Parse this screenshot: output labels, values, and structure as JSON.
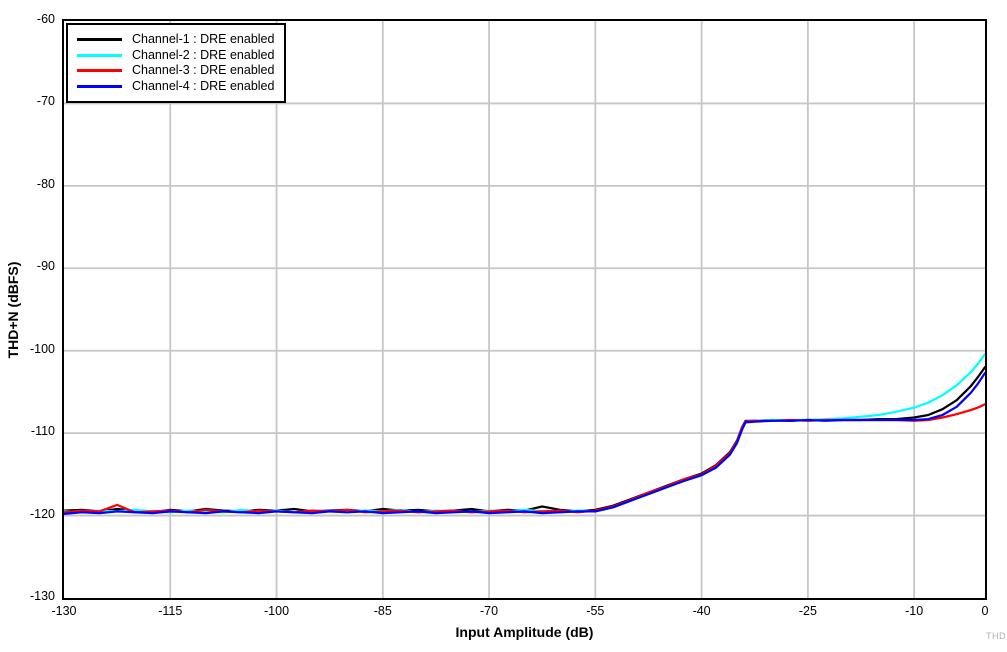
{
  "watermark": "THD",
  "colors": {
    "grid": "#c6c6c6",
    "axis": "#000000",
    "background": "#ffffff"
  },
  "chart_data": {
    "type": "line",
    "title": "",
    "xlabel": "Input Amplitude (dB)",
    "ylabel": "THD+N (dBFS)",
    "xlim": [
      -130,
      0
    ],
    "ylim": [
      -130,
      -60
    ],
    "x_ticks": [
      -130,
      -115,
      -100,
      -85,
      -70,
      -55,
      -40,
      -25,
      -10,
      0
    ],
    "y_ticks": [
      -60,
      -70,
      -80,
      -90,
      -100,
      -110,
      -120,
      -130
    ],
    "grid": true,
    "legend_position": "top-left",
    "series": [
      {
        "name": "Channel-1 : DRE enabled",
        "color": "#000000",
        "points": [
          [
            -130,
            -119.4
          ],
          [
            -127.5,
            -119.3
          ],
          [
            -125,
            -119.5
          ],
          [
            -122.5,
            -119.2
          ],
          [
            -120,
            -119.4
          ],
          [
            -117.5,
            -119.6
          ],
          [
            -115,
            -119.3
          ],
          [
            -112.5,
            -119.5
          ],
          [
            -110,
            -119.2
          ],
          [
            -107.5,
            -119.4
          ],
          [
            -105,
            -119.5
          ],
          [
            -102.5,
            -119.3
          ],
          [
            -100,
            -119.4
          ],
          [
            -97.5,
            -119.2
          ],
          [
            -95,
            -119.5
          ],
          [
            -92.5,
            -119.4
          ],
          [
            -90,
            -119.3
          ],
          [
            -87.5,
            -119.5
          ],
          [
            -85,
            -119.2
          ],
          [
            -82.5,
            -119.4
          ],
          [
            -80,
            -119.3
          ],
          [
            -77.5,
            -119.5
          ],
          [
            -75,
            -119.4
          ],
          [
            -72.5,
            -119.2
          ],
          [
            -70,
            -119.5
          ],
          [
            -67.5,
            -119.3
          ],
          [
            -65,
            -119.4
          ],
          [
            -62.5,
            -118.9
          ],
          [
            -60,
            -119.3
          ],
          [
            -57.5,
            -119.5
          ],
          [
            -55,
            -119.3
          ],
          [
            -52.5,
            -118.8
          ],
          [
            -50,
            -118.0
          ],
          [
            -47.5,
            -117.2
          ],
          [
            -45,
            -116.4
          ],
          [
            -42.5,
            -115.6
          ],
          [
            -40,
            -114.9
          ],
          [
            -38,
            -113.9
          ],
          [
            -36,
            -112.3
          ],
          [
            -35,
            -110.9
          ],
          [
            -34.3,
            -109.3
          ],
          [
            -33.8,
            -108.5
          ],
          [
            -32.5,
            -108.5
          ],
          [
            -30,
            -108.4
          ],
          [
            -27.5,
            -108.5
          ],
          [
            -25,
            -108.4
          ],
          [
            -22.5,
            -108.4
          ],
          [
            -20,
            -108.4
          ],
          [
            -17.5,
            -108.4
          ],
          [
            -15,
            -108.3
          ],
          [
            -12.5,
            -108.3
          ],
          [
            -10,
            -108.1
          ],
          [
            -8,
            -107.8
          ],
          [
            -6,
            -107.1
          ],
          [
            -4,
            -106.0
          ],
          [
            -2,
            -104.3
          ],
          [
            -1,
            -103.2
          ],
          [
            0,
            -102.0
          ]
        ]
      },
      {
        "name": "Channel-2 : DRE enabled",
        "color": "#00ffff",
        "points": [
          [
            -130,
            -119.5
          ],
          [
            -127.5,
            -119.6
          ],
          [
            -125,
            -119.4
          ],
          [
            -122.5,
            -119.5
          ],
          [
            -120,
            -119.3
          ],
          [
            -117.5,
            -119.5
          ],
          [
            -115,
            -119.6
          ],
          [
            -112.5,
            -119.4
          ],
          [
            -110,
            -119.5
          ],
          [
            -107.5,
            -119.6
          ],
          [
            -105,
            -119.3
          ],
          [
            -102.5,
            -119.5
          ],
          [
            -100,
            -119.4
          ],
          [
            -97.5,
            -119.6
          ],
          [
            -95,
            -119.4
          ],
          [
            -92.5,
            -119.5
          ],
          [
            -90,
            -119.6
          ],
          [
            -87.5,
            -119.4
          ],
          [
            -85,
            -119.5
          ],
          [
            -82.5,
            -119.3
          ],
          [
            -80,
            -119.6
          ],
          [
            -77.5,
            -119.4
          ],
          [
            -75,
            -119.5
          ],
          [
            -72.5,
            -119.6
          ],
          [
            -70,
            -119.4
          ],
          [
            -67.5,
            -119.5
          ],
          [
            -65,
            -119.3
          ],
          [
            -62.5,
            -119.5
          ],
          [
            -60,
            -119.6
          ],
          [
            -57.5,
            -119.4
          ],
          [
            -55,
            -119.5
          ],
          [
            -52.5,
            -119.0
          ],
          [
            -50,
            -118.2
          ],
          [
            -47.5,
            -117.4
          ],
          [
            -45,
            -116.6
          ],
          [
            -42.5,
            -115.8
          ],
          [
            -40,
            -115.1
          ],
          [
            -38,
            -114.2
          ],
          [
            -36,
            -112.5
          ],
          [
            -35,
            -111.1
          ],
          [
            -34.3,
            -109.5
          ],
          [
            -33.8,
            -108.6
          ],
          [
            -32.5,
            -108.5
          ],
          [
            -30,
            -108.4
          ],
          [
            -27.5,
            -108.4
          ],
          [
            -25,
            -108.4
          ],
          [
            -22.5,
            -108.3
          ],
          [
            -20,
            -108.2
          ],
          [
            -17.5,
            -108.0
          ],
          [
            -15,
            -107.8
          ],
          [
            -12.5,
            -107.4
          ],
          [
            -10,
            -106.9
          ],
          [
            -8,
            -106.3
          ],
          [
            -6,
            -105.4
          ],
          [
            -4,
            -104.2
          ],
          [
            -2,
            -102.6
          ],
          [
            -1,
            -101.6
          ],
          [
            0,
            -100.4
          ]
        ]
      },
      {
        "name": "Channel-3 : DRE enabled",
        "color": "#ff0000",
        "points": [
          [
            -130,
            -119.6
          ],
          [
            -127.5,
            -119.4
          ],
          [
            -125,
            -119.5
          ],
          [
            -122.5,
            -118.7
          ],
          [
            -120,
            -119.6
          ],
          [
            -117.5,
            -119.5
          ],
          [
            -115,
            -119.4
          ],
          [
            -112.5,
            -119.6
          ],
          [
            -110,
            -119.3
          ],
          [
            -107.5,
            -119.5
          ],
          [
            -105,
            -119.6
          ],
          [
            -102.5,
            -119.4
          ],
          [
            -100,
            -119.5
          ],
          [
            -97.5,
            -119.6
          ],
          [
            -95,
            -119.4
          ],
          [
            -92.5,
            -119.5
          ],
          [
            -90,
            -119.3
          ],
          [
            -87.5,
            -119.6
          ],
          [
            -85,
            -119.5
          ],
          [
            -82.5,
            -119.4
          ],
          [
            -80,
            -119.6
          ],
          [
            -77.5,
            -119.5
          ],
          [
            -75,
            -119.4
          ],
          [
            -72.5,
            -119.6
          ],
          [
            -70,
            -119.5
          ],
          [
            -67.5,
            -119.4
          ],
          [
            -65,
            -119.6
          ],
          [
            -62.5,
            -119.5
          ],
          [
            -60,
            -119.4
          ],
          [
            -57.5,
            -119.6
          ],
          [
            -55,
            -119.4
          ],
          [
            -52.5,
            -118.9
          ],
          [
            -50,
            -118.1
          ],
          [
            -47.5,
            -117.2
          ],
          [
            -45,
            -116.5
          ],
          [
            -42.5,
            -115.6
          ],
          [
            -40,
            -115.0
          ],
          [
            -38,
            -114.0
          ],
          [
            -36,
            -112.4
          ],
          [
            -35,
            -111.0
          ],
          [
            -34.3,
            -109.4
          ],
          [
            -33.8,
            -108.6
          ],
          [
            -32.5,
            -108.5
          ],
          [
            -30,
            -108.5
          ],
          [
            -27.5,
            -108.4
          ],
          [
            -25,
            -108.5
          ],
          [
            -22.5,
            -108.4
          ],
          [
            -20,
            -108.4
          ],
          [
            -17.5,
            -108.4
          ],
          [
            -15,
            -108.4
          ],
          [
            -12.5,
            -108.4
          ],
          [
            -10,
            -108.5
          ],
          [
            -8,
            -108.4
          ],
          [
            -6,
            -108.1
          ],
          [
            -4,
            -107.7
          ],
          [
            -2,
            -107.2
          ],
          [
            -1,
            -106.9
          ],
          [
            0,
            -106.5
          ]
        ]
      },
      {
        "name": "Channel-4 : DRE enabled",
        "color": "#0000ff",
        "points": [
          [
            -130,
            -119.8
          ],
          [
            -127.5,
            -119.6
          ],
          [
            -125,
            -119.7
          ],
          [
            -122.5,
            -119.5
          ],
          [
            -120,
            -119.6
          ],
          [
            -117.5,
            -119.7
          ],
          [
            -115,
            -119.5
          ],
          [
            -112.5,
            -119.6
          ],
          [
            -110,
            -119.7
          ],
          [
            -107.5,
            -119.5
          ],
          [
            -105,
            -119.6
          ],
          [
            -102.5,
            -119.7
          ],
          [
            -100,
            -119.5
          ],
          [
            -97.5,
            -119.6
          ],
          [
            -95,
            -119.7
          ],
          [
            -92.5,
            -119.5
          ],
          [
            -90,
            -119.6
          ],
          [
            -87.5,
            -119.5
          ],
          [
            -85,
            -119.7
          ],
          [
            -82.5,
            -119.6
          ],
          [
            -80,
            -119.5
          ],
          [
            -77.5,
            -119.7
          ],
          [
            -75,
            -119.6
          ],
          [
            -72.5,
            -119.5
          ],
          [
            -70,
            -119.7
          ],
          [
            -67.5,
            -119.6
          ],
          [
            -65,
            -119.5
          ],
          [
            -62.5,
            -119.7
          ],
          [
            -60,
            -119.6
          ],
          [
            -57.5,
            -119.5
          ],
          [
            -55,
            -119.5
          ],
          [
            -52.5,
            -119.0
          ],
          [
            -50,
            -118.2
          ],
          [
            -47.5,
            -117.4
          ],
          [
            -45,
            -116.6
          ],
          [
            -42.5,
            -115.8
          ],
          [
            -40,
            -115.1
          ],
          [
            -38,
            -114.2
          ],
          [
            -36,
            -112.6
          ],
          [
            -35,
            -111.2
          ],
          [
            -34.3,
            -109.6
          ],
          [
            -33.8,
            -108.7
          ],
          [
            -32.5,
            -108.6
          ],
          [
            -30,
            -108.5
          ],
          [
            -27.5,
            -108.5
          ],
          [
            -25,
            -108.4
          ],
          [
            -22.5,
            -108.5
          ],
          [
            -20,
            -108.4
          ],
          [
            -17.5,
            -108.4
          ],
          [
            -15,
            -108.4
          ],
          [
            -12.5,
            -108.4
          ],
          [
            -10,
            -108.4
          ],
          [
            -8,
            -108.3
          ],
          [
            -6,
            -107.8
          ],
          [
            -4,
            -106.8
          ],
          [
            -2,
            -105.1
          ],
          [
            -1,
            -104.0
          ],
          [
            0,
            -102.7
          ]
        ]
      }
    ]
  }
}
